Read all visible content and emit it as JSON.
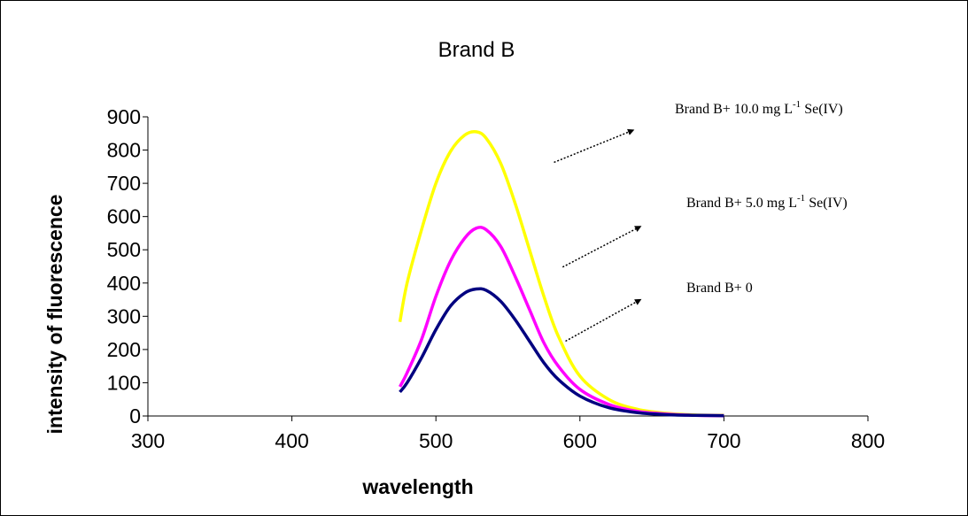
{
  "chart_data": {
    "type": "line",
    "title": "Brand B",
    "xlabel": "wavelength",
    "ylabel": "intensity of fluorescence",
    "xlim": [
      300,
      800
    ],
    "ylim": [
      0,
      900
    ],
    "xticks": [
      "300",
      "400",
      "500",
      "600",
      "700",
      "800"
    ],
    "yticks": [
      "0",
      "100",
      "200",
      "300",
      "400",
      "500",
      "600",
      "700",
      "800",
      "900"
    ],
    "grid": false,
    "x": [
      475,
      480,
      490,
      500,
      510,
      520,
      528,
      535,
      545,
      555,
      565,
      575,
      585,
      600,
      620,
      640,
      660,
      680,
      700
    ],
    "series": [
      {
        "color": "#ffff00",
        "values": [
          283,
          400,
          560,
          700,
          795,
          845,
          855,
          835,
          760,
          640,
          500,
          360,
          240,
          120,
          50,
          20,
          8,
          3,
          2
        ]
      },
      {
        "color": "#ff00ff",
        "values": [
          88,
          130,
          230,
          360,
          465,
          535,
          565,
          560,
          510,
          420,
          320,
          220,
          150,
          80,
          35,
          14,
          6,
          2,
          1
        ]
      },
      {
        "color": "#000080",
        "values": [
          72,
          100,
          175,
          260,
          330,
          370,
          382,
          378,
          345,
          290,
          225,
          160,
          110,
          60,
          25,
          10,
          4,
          2,
          1
        ]
      }
    ],
    "annotations": [
      {
        "prefix": "Brand B+ 10.0 mg L",
        "sup": "-1",
        "suffix": " Se(IV)",
        "arrow_from": [
          582,
          763
        ],
        "arrow_to": [
          637,
          860
        ]
      },
      {
        "prefix": "Brand B+ 5.0 mg L",
        "sup": "-1",
        "suffix": " Se(IV)",
        "arrow_from": [
          588,
          448
        ],
        "arrow_to": [
          642,
          570
        ]
      },
      {
        "prefix": "Brand B+ 0",
        "sup": "",
        "suffix": "",
        "arrow_from": [
          590,
          225
        ],
        "arrow_to": [
          642,
          350
        ]
      }
    ]
  }
}
